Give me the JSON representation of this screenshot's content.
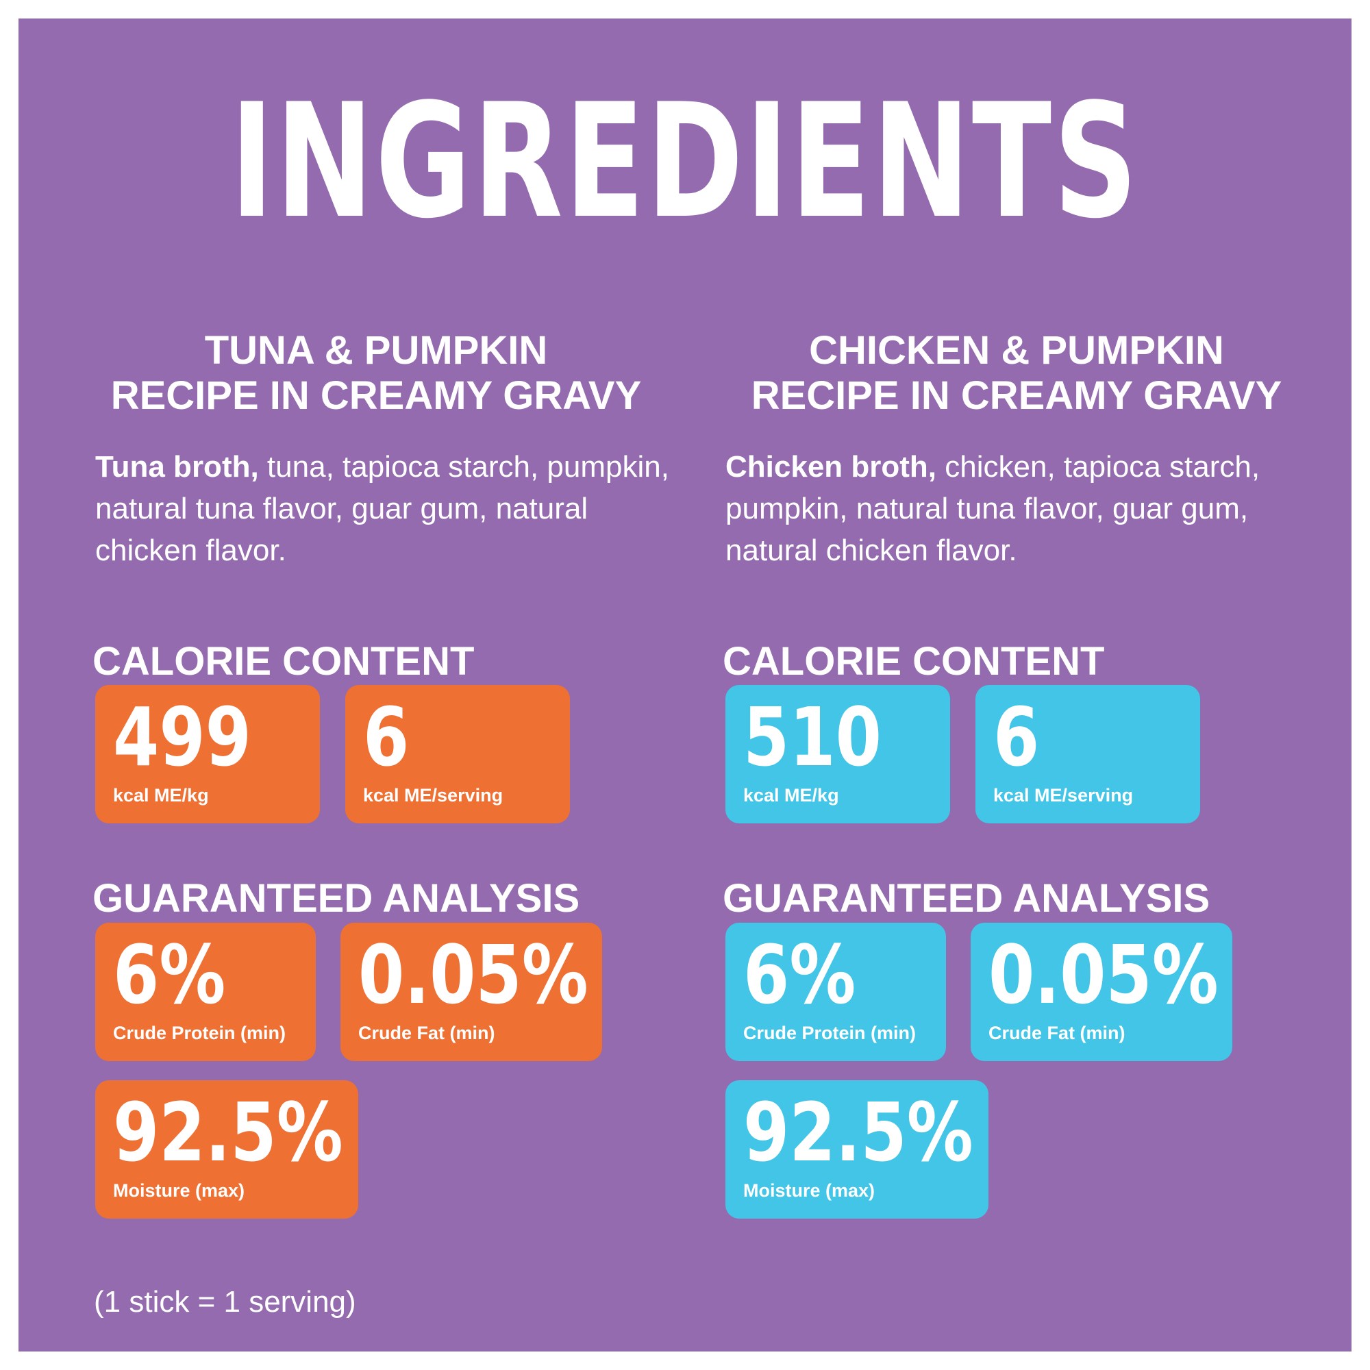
{
  "title": "INGREDIENTS",
  "left": {
    "recipe_line1": "TUNA & PUMPKIN",
    "recipe_line2": "RECIPE IN CREAMY GRAVY",
    "ingredients_bold": "Tuna broth,",
    "ingredients_rest": " tuna, tapioca starch, pumpkin, natural tuna flavor, guar gum, natural chicken flavor.",
    "calorie_heading": "CALORIE CONTENT",
    "cal_kg_value": "499",
    "cal_kg_label": "kcal ME/kg",
    "cal_serving_value": "6",
    "cal_serving_label": "kcal ME/serving",
    "analysis_heading": "GUARANTEED ANALYSIS",
    "protein_value": "6%",
    "protein_label": "Crude Protein (min)",
    "fat_value": "0.05%",
    "fat_label": "Crude Fat (min)",
    "moisture_value": "92.5%",
    "moisture_label": "Moisture (max)",
    "accent_color": "#ef7033"
  },
  "right": {
    "recipe_line1": "CHICKEN & PUMPKIN",
    "recipe_line2": "RECIPE IN CREAMY GRAVY",
    "ingredients_bold": "Chicken broth,",
    "ingredients_rest": " chicken, tapioca starch, pumpkin, natural tuna flavor, guar gum, natural chicken flavor.",
    "calorie_heading": "CALORIE CONTENT",
    "cal_kg_value": "510",
    "cal_kg_label": "kcal ME/kg",
    "cal_serving_value": "6",
    "cal_serving_label": "kcal ME/serving",
    "analysis_heading": "GUARANTEED ANALYSIS",
    "protein_value": "6%",
    "protein_label": "Crude Protein (min)",
    "fat_value": "0.05%",
    "fat_label": "Crude Fat (min)",
    "moisture_value": "92.5%",
    "moisture_label": "Moisture (max)",
    "accent_color": "#42c5e6"
  },
  "footnote": "(1 stick = 1 serving)",
  "background_color": "#946bae"
}
